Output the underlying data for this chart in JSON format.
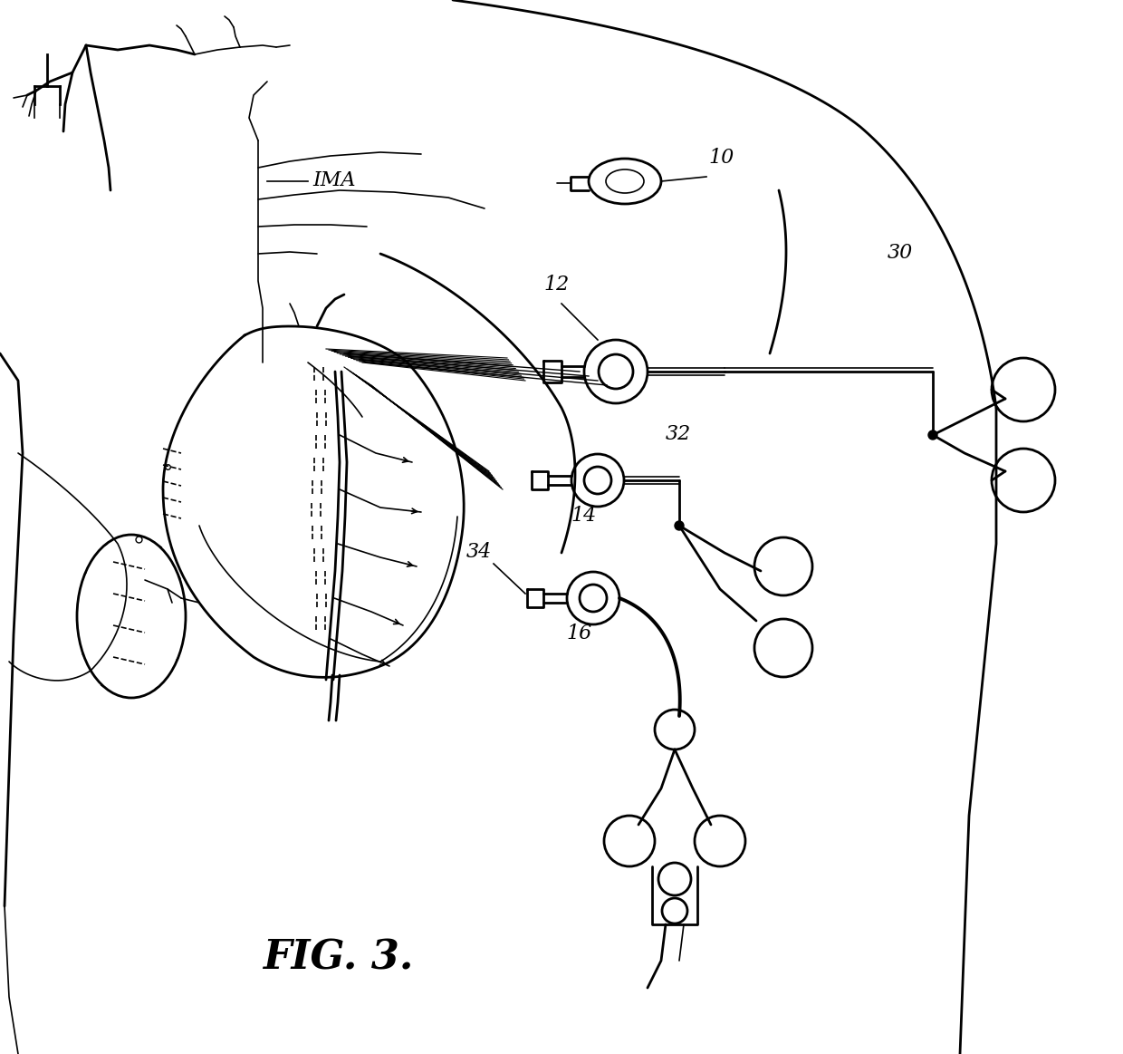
{
  "title": "FIG. 3.",
  "background_color": "#ffffff",
  "line_color": "#000000",
  "figsize": [
    12.4,
    11.63
  ],
  "dpi": 100
}
